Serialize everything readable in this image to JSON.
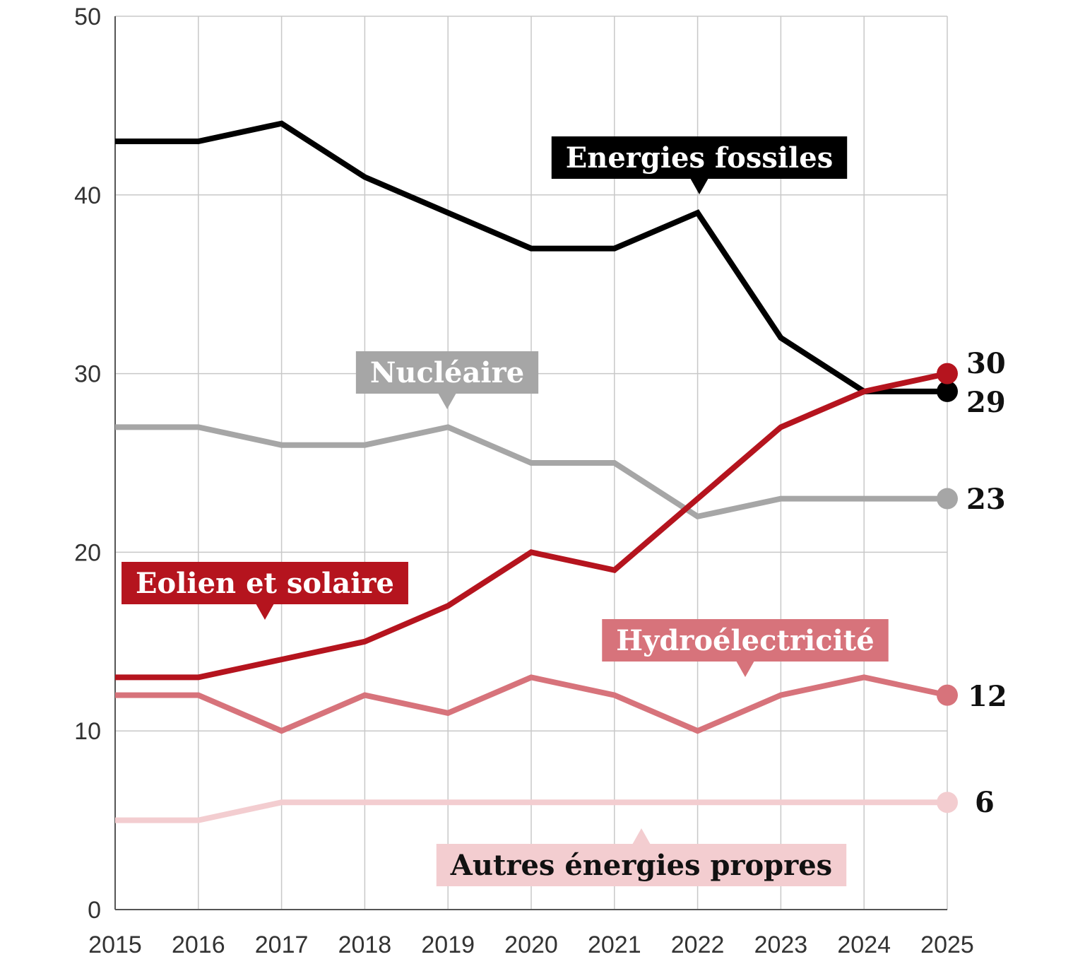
{
  "chart_data": {
    "type": "line",
    "title": "",
    "xlabel": "",
    "ylabel": "",
    "x": [
      "2015",
      "2016",
      "2017",
      "2018",
      "2019",
      "2020",
      "2021",
      "2022",
      "2023",
      "2024",
      "2025"
    ],
    "ylim": [
      0,
      50
    ],
    "y_ticks": [
      "0",
      "10",
      "20",
      "30",
      "40",
      "50"
    ],
    "grid": true,
    "legend": "inline labels",
    "series": [
      {
        "name": "Energies fossiles",
        "color": "#000000",
        "label_text": "#ffffff",
        "values": [
          43,
          43,
          44,
          41,
          39,
          37,
          37,
          39,
          32,
          29,
          29
        ],
        "end_label": "29"
      },
      {
        "name": "Nucléaire",
        "color": "#a6a6a6",
        "label_text": "#ffffff",
        "values": [
          27,
          27,
          26,
          26,
          27,
          25,
          25,
          22,
          23,
          23,
          23
        ],
        "end_label": "23"
      },
      {
        "name": "Eolien et solaire",
        "color": "#b5141e",
        "label_text": "#ffffff",
        "values": [
          13,
          13,
          14,
          15,
          17,
          20,
          19,
          23,
          27,
          29,
          30
        ],
        "end_label": "30"
      },
      {
        "name": "Hydroélectricité",
        "color": "#d7737b",
        "label_text": "#ffffff",
        "values": [
          12,
          12,
          10,
          12,
          11,
          13,
          12,
          10,
          12,
          13,
          12
        ],
        "end_label": "12"
      },
      {
        "name": "Autres énergies propres",
        "color": "#f3cdd0",
        "label_text": "#111111",
        "values": [
          5,
          5,
          6,
          6,
          6,
          6,
          6,
          6,
          6,
          6,
          6
        ],
        "end_label": "6"
      }
    ]
  }
}
